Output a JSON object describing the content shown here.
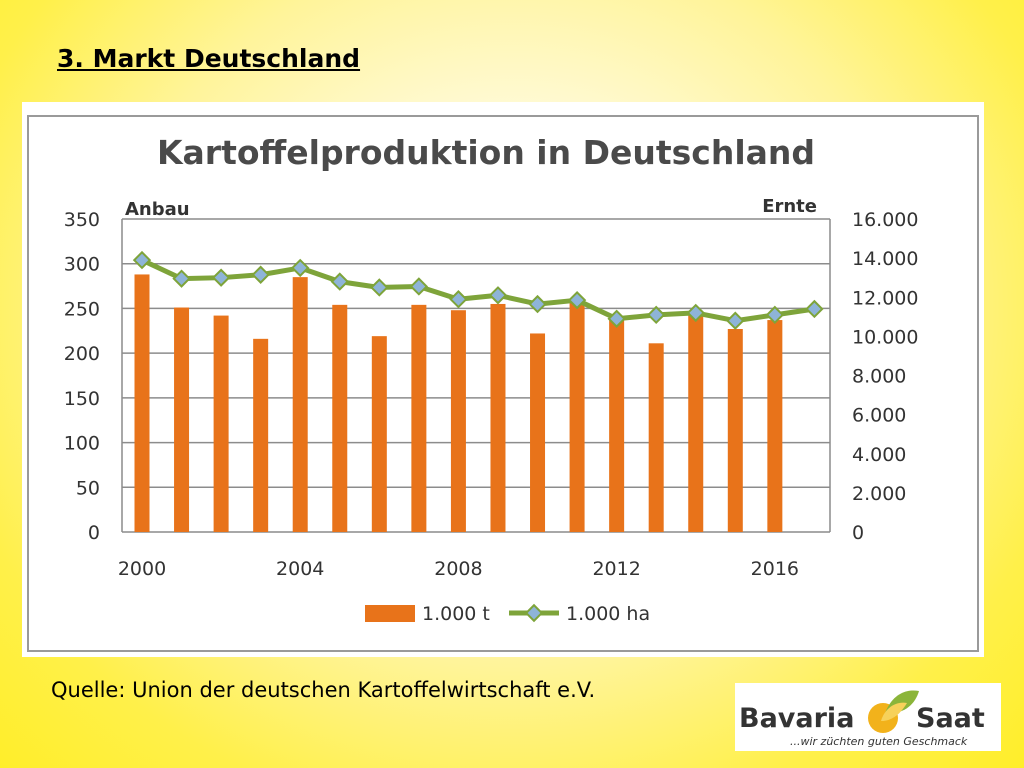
{
  "slide": {
    "title": "3. Markt Deutschland",
    "source": "Quelle: Union der deutschen Kartoffelwirtschaft e.V."
  },
  "logo": {
    "word1": "Bavaria",
    "word2": "Saat",
    "tagline": "...wir züchten guten Geschmack",
    "icon": "sun-leaf-icon"
  },
  "chart_data": {
    "type": "bar",
    "title": "Kartoffelproduktion in Deutschland",
    "ylabel_left": "Anbau",
    "ylabel_right": "Ernte",
    "x": [
      2000,
      2001,
      2002,
      2003,
      2004,
      2005,
      2006,
      2007,
      2008,
      2009,
      2010,
      2011,
      2012,
      2013,
      2014,
      2015,
      2016,
      2017
    ],
    "x_tick_labels": [
      "2000",
      "2004",
      "2008",
      "2012",
      "2016"
    ],
    "x_tick_years": [
      2000,
      2004,
      2008,
      2012,
      2016
    ],
    "left_ticks": [
      "0",
      "50",
      "100",
      "150",
      "200",
      "250",
      "300",
      "350"
    ],
    "left_ylim": [
      0,
      350
    ],
    "right_ticks": [
      "0",
      "2.000",
      "4.000",
      "6.000",
      "8.000",
      "10.000",
      "12.000",
      "14.000",
      "16.000"
    ],
    "right_ylim": [
      0,
      16000
    ],
    "grid": true,
    "legend_position": "bottom",
    "series": [
      {
        "name": "1.000 t",
        "type": "bar",
        "axis": "left",
        "color": "#E8731A",
        "values": [
          288,
          251,
          242,
          216,
          285,
          254,
          219,
          254,
          248,
          255,
          222,
          258,
          241,
          211,
          245,
          227,
          237,
          null
        ]
      },
      {
        "name": "1.000 ha",
        "type": "line",
        "axis": "right",
        "color": "#7EA43A",
        "marker_color": "#8EB4D8",
        "values": [
          13900,
          12950,
          13000,
          13150,
          13500,
          12800,
          12500,
          12550,
          11900,
          12100,
          11650,
          11850,
          10900,
          11100,
          11200,
          10800,
          11100,
          11400
        ]
      }
    ]
  }
}
